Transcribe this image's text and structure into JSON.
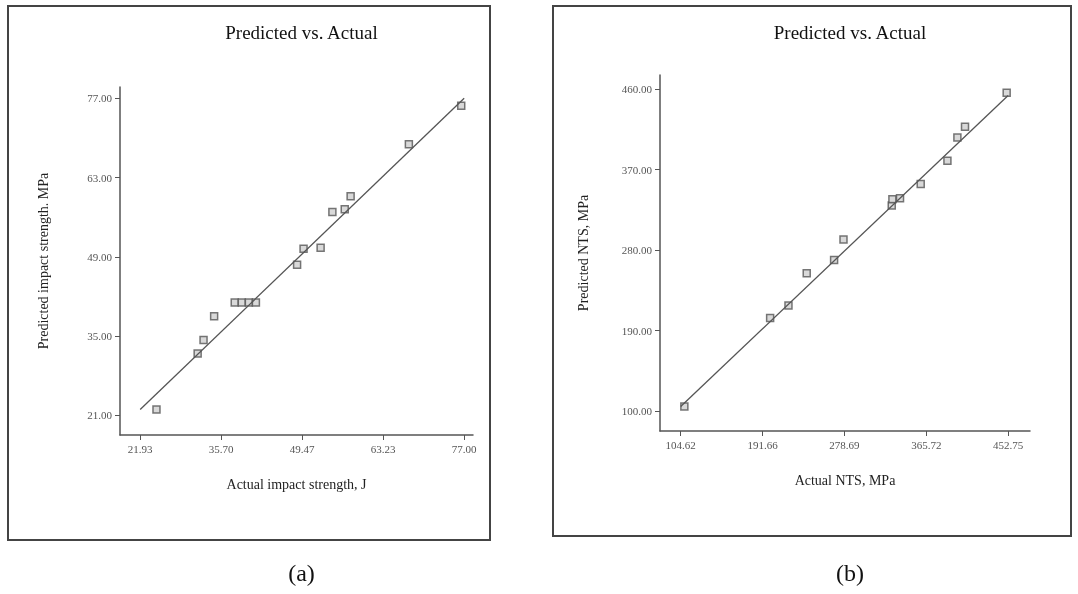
{
  "chart_data": [
    {
      "type": "scatter",
      "title": "Predicted vs. Actual",
      "xlabel": "Actual impact strength, J",
      "ylabel": "Predicted impact strength. MPa",
      "annotations": [
        "(a)"
      ],
      "marker": "square",
      "grid": false,
      "xlim": [
        18.5,
        78.5
      ],
      "ylim": [
        17.5,
        79
      ],
      "xticks": [
        21.93,
        {
          "value": 35.7,
          "label": "35.70"
        },
        49.47,
        63.23,
        {
          "value": 77,
          "label": "77.00"
        }
      ],
      "yticks": [
        {
          "value": 21,
          "label": "21.00"
        },
        {
          "value": 35,
          "label": "35.00"
        },
        {
          "value": 49,
          "label": "49.00"
        },
        {
          "value": 63,
          "label": "63.00"
        },
        {
          "value": 77,
          "label": "77.00"
        }
      ],
      "series": [
        {
          "color": "#555555",
          "x": [
            24.7,
            31.7,
            32.7,
            34.5,
            38.0,
            39.2,
            40.4,
            41.6,
            48.6,
            49.7,
            52.6,
            54.6,
            56.7,
            57.7,
            67.6,
            76.5
          ],
          "values": [
            22.0,
            31.9,
            34.3,
            38.5,
            40.9,
            40.9,
            40.9,
            40.9,
            47.6,
            50.4,
            50.6,
            56.9,
            57.4,
            59.7,
            68.9,
            75.7
          ]
        },
        {
          "type": "line",
          "color": "#555555",
          "marker": "none",
          "x": [
            21.93,
            77
          ],
          "values": [
            22,
            77
          ]
        }
      ]
    },
    {
      "type": "scatter",
      "title": "Predicted vs. Actual",
      "xlabel": "Actual NTS, MPa",
      "ylabel": "Predicted NTS, MPa",
      "annotations": [
        "(b)"
      ],
      "marker": "square",
      "grid": false,
      "xlim": [
        82.6,
        476
      ],
      "ylim": [
        77.6,
        476
      ],
      "xticks": [
        104.62,
        191.66,
        278.69,
        365.72,
        452.75
      ],
      "yticks": [
        {
          "value": 100,
          "label": "100.00"
        },
        {
          "value": 190,
          "label": "190.00"
        },
        {
          "value": 280,
          "label": "280.00"
        },
        {
          "value": 370,
          "label": "370.00"
        },
        {
          "value": 460,
          "label": "460.00"
        }
      ],
      "series": [
        {
          "color": "#555555",
          "x": [
            108.5,
            199.7,
            219.2,
            238.6,
            267.7,
            277.7,
            329.0,
            329.7,
            337.8,
            359.8,
            388.2,
            398.8,
            406.9,
            451.2
          ],
          "values": [
            105,
            204,
            218,
            254,
            269,
            292,
            330,
            337,
            338,
            354,
            380,
            406,
            418,
            456
          ]
        },
        {
          "type": "line",
          "color": "#555555",
          "marker": "none",
          "x": [
            104.62,
            452.75
          ],
          "values": [
            105,
            453
          ]
        }
      ]
    }
  ]
}
